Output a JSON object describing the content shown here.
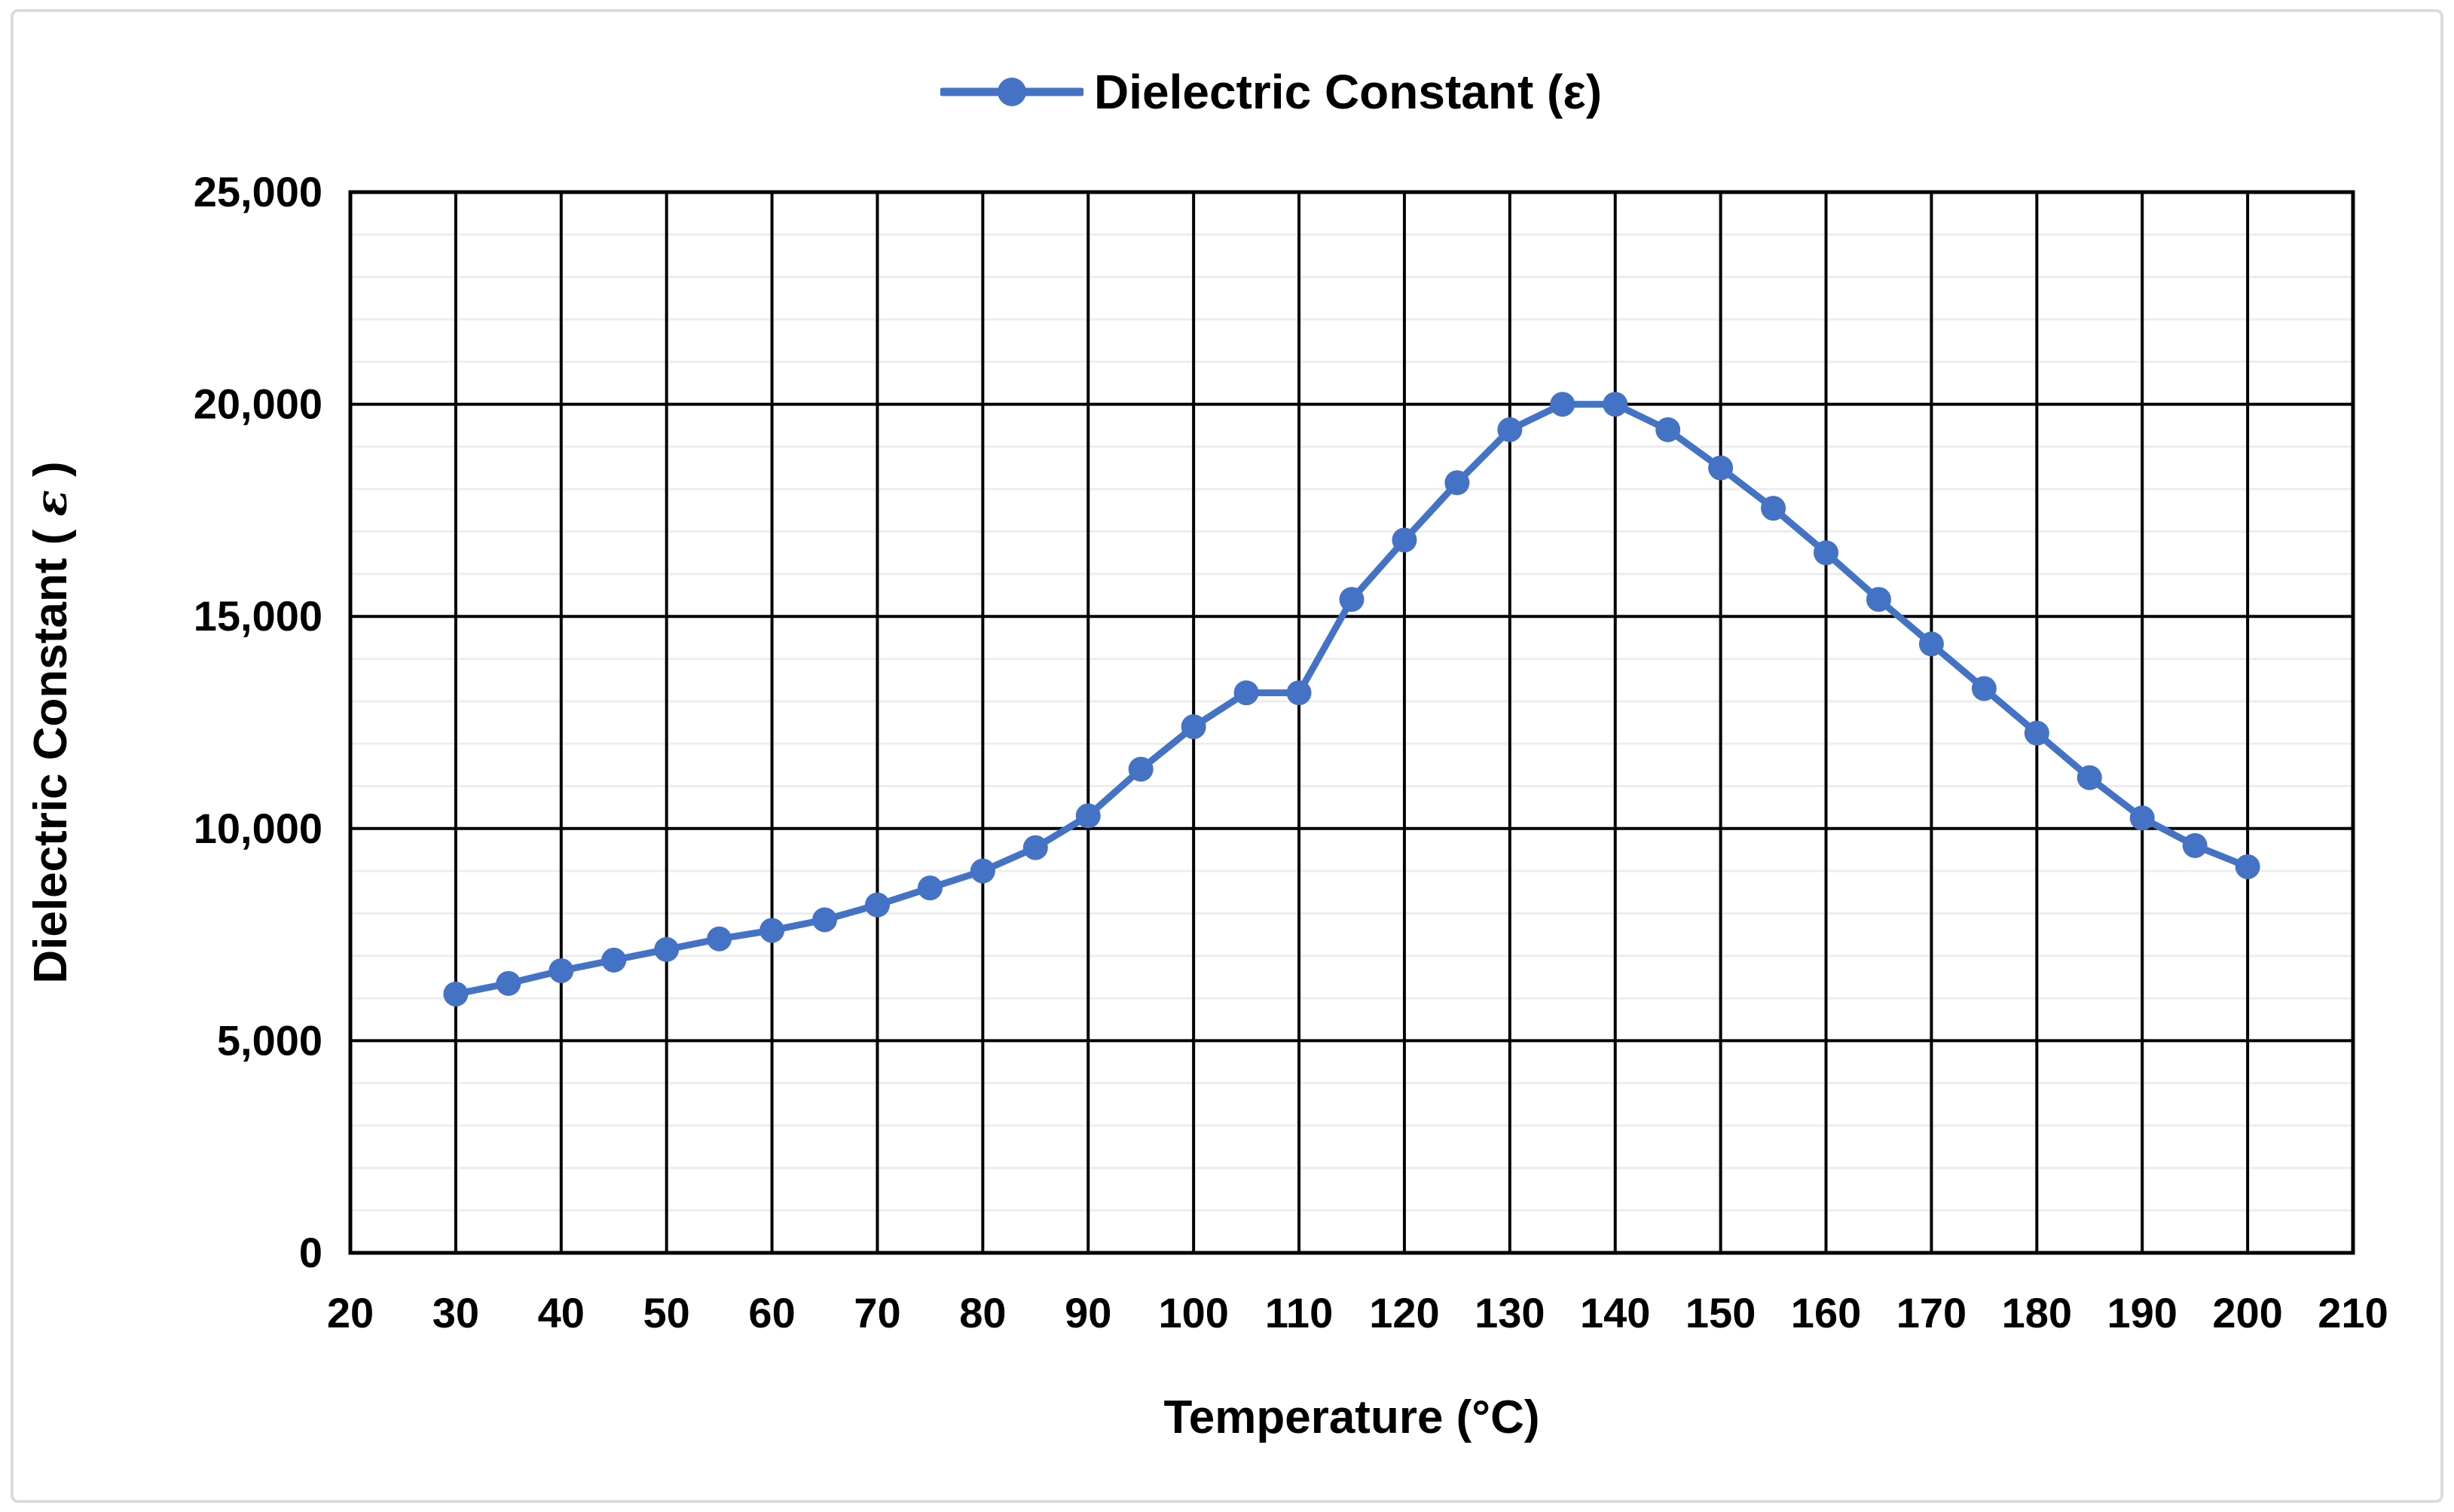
{
  "legend": {
    "label": "Dielectric Constant (ε)"
  },
  "chart_data": {
    "type": "line",
    "title": "",
    "xlabel": "Temperature (°C)",
    "ylabel": "Dielectric Constant ( ε )",
    "series_color": "#4472C4",
    "xlim": [
      20,
      210
    ],
    "ylim": [
      0,
      25000
    ],
    "x_tick_step": 10,
    "y_tick_step": 5000,
    "y_minor_step": 1000,
    "grid": {
      "major_color": "#000000",
      "minor_color": "#ededed",
      "frame_color": "#000000"
    },
    "legend_position": "top-center",
    "x_ticks": [
      20,
      30,
      40,
      50,
      60,
      70,
      80,
      90,
      100,
      110,
      120,
      130,
      140,
      150,
      160,
      170,
      180,
      190,
      200,
      210
    ],
    "y_ticks": [
      0,
      5000,
      10000,
      15000,
      20000,
      25000
    ],
    "y_tick_labels": [
      "0",
      "5,000",
      "10,000",
      "15,000",
      "20,000",
      "25,000"
    ],
    "x": [
      30,
      35,
      40,
      45,
      50,
      55,
      60,
      65,
      70,
      75,
      80,
      85,
      90,
      95,
      100,
      105,
      110,
      115,
      120,
      125,
      130,
      135,
      140,
      145,
      150,
      155,
      160,
      165,
      170,
      175,
      180,
      185,
      190,
      195,
      200
    ],
    "series": [
      {
        "name": "Dielectric Constant (ε)",
        "values": [
          6100,
          6350,
          6650,
          6900,
          7150,
          7400,
          7600,
          7850,
          8200,
          8600,
          9000,
          9550,
          10300,
          11400,
          12400,
          13200,
          13200,
          15400,
          16800,
          18150,
          19400,
          20000,
          20000,
          19400,
          18500,
          17550,
          16500,
          15400,
          14350,
          13300,
          12250,
          11200,
          10250,
          9600,
          9100
        ]
      }
    ]
  }
}
